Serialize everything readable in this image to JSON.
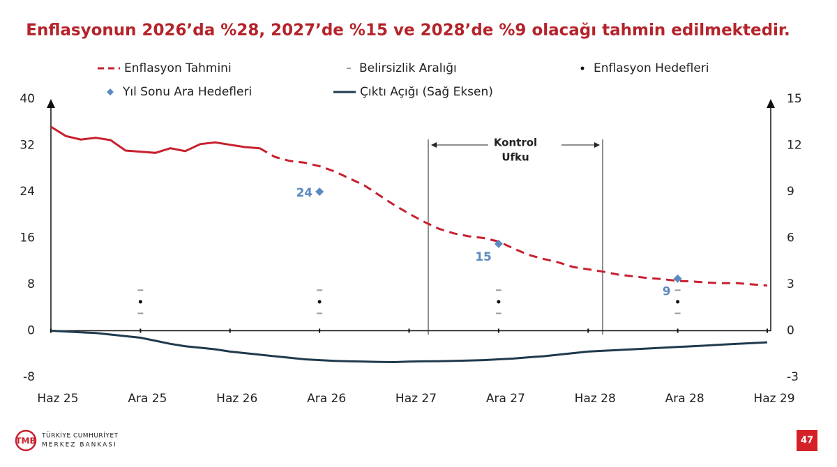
{
  "chart_data": {
    "type": "line",
    "title": "Enflasyonun 2026’da %28, 2027’de %15 ve 2028’de %9 olacağı tahmin edilmektedir.",
    "categories": [
      "Haz 25",
      null,
      null,
      null,
      null,
      null,
      "Ara 25",
      null,
      null,
      null,
      null,
      null,
      "Haz 26",
      null,
      null,
      null,
      null,
      null,
      "Ara 26",
      null,
      null,
      null,
      null,
      null,
      "Haz 27",
      null,
      null,
      null,
      null,
      null,
      "Ara 27",
      null,
      null,
      null,
      null,
      null,
      "Haz 28",
      null,
      null,
      null,
      null,
      null,
      "Ara 28",
      null,
      null,
      null,
      null,
      null,
      "Haz 29"
    ],
    "ylim": [
      -8,
      40
    ],
    "yticks": [
      -8,
      0,
      8,
      16,
      24,
      32,
      40
    ],
    "y2lim": [
      -3,
      15
    ],
    "y2ticks": [
      -3,
      0,
      3,
      6,
      9,
      12,
      15
    ],
    "annotation": [
      "Kontrol",
      "Ufku"
    ],
    "series": [
      {
        "color": "#c8202f",
        "style": "solid",
        "values": [
          35.2,
          33.6,
          33.0,
          33.3,
          32.9,
          31.1,
          30.9,
          30.7,
          31.5,
          31.0,
          32.2,
          32.5,
          32.1,
          31.7,
          31.5,
          null,
          null,
          null,
          null,
          null,
          null,
          null,
          null,
          null,
          null,
          null,
          null,
          null,
          null,
          null,
          null,
          null,
          null,
          null,
          null,
          null,
          null,
          null,
          null,
          null,
          null,
          null,
          null,
          null,
          null,
          null,
          null,
          null,
          null
        ]
      },
      {
        "name": "Enflasyon Tahmini",
        "color": "#c8202f",
        "style": "dashed",
        "values": [
          null,
          null,
          null,
          null,
          null,
          null,
          null,
          null,
          null,
          null,
          null,
          null,
          null,
          null,
          31.5,
          30.0,
          29.3,
          29.0,
          28.4,
          27.5,
          26.3,
          25.1,
          23.4,
          21.7,
          20.2,
          18.8,
          17.6,
          16.8,
          16.3,
          16.0,
          15.4,
          14.2,
          13.1,
          12.4,
          11.8,
          11.0,
          10.6,
          10.2,
          9.7,
          9.4,
          9.1,
          8.9,
          8.6,
          8.5,
          8.3,
          8.2,
          8.2,
          8.0,
          7.8
        ]
      },
      {
        "name": "Belirsizlik Aralığı",
        "color": "#999999",
        "kind": "range",
        "x": [
          "Ara 25",
          "Ara 26",
          "Ara 27",
          "Ara 28"
        ],
        "values": [
          7,
          7,
          7,
          7
        ],
        "low": [
          3,
          3,
          3,
          3
        ]
      },
      {
        "name": "Enflasyon Hedefleri",
        "color": "#111111",
        "kind": "dot",
        "x": [
          "Ara 25",
          "Ara 26",
          "Ara 27",
          "Ara 28"
        ],
        "values": [
          5,
          5,
          5,
          5
        ]
      },
      {
        "name": "Yıl Sonu Ara Hedefleri",
        "color": "#5b8ac0",
        "kind": "diamond",
        "x": [
          "Ara 26",
          "Ara 27",
          "Ara 28"
        ],
        "values": [
          24,
          15,
          9
        ]
      },
      {
        "name": "Çıktı Açığı (Sağ Eksen)",
        "color": "#1f3a4d",
        "style": "solid",
        "axis": "y2",
        "values": [
          0,
          -0.05,
          -0.1,
          -0.15,
          -0.25,
          -0.35,
          -0.45,
          -0.65,
          -0.85,
          -1.0,
          -1.1,
          -1.2,
          -1.35,
          -1.45,
          -1.55,
          -1.65,
          -1.75,
          -1.85,
          -1.9,
          -1.95,
          -1.98,
          -2.0,
          -2.02,
          -2.03,
          -2.0,
          -1.98,
          -1.97,
          -1.95,
          -1.93,
          -1.9,
          -1.85,
          -1.8,
          -1.72,
          -1.65,
          -1.55,
          -1.45,
          -1.35,
          -1.3,
          -1.25,
          -1.2,
          -1.15,
          -1.1,
          -1.05,
          -1.0,
          -0.95,
          -0.9,
          -0.85,
          -0.8,
          -0.75
        ]
      }
    ]
  },
  "footer": {
    "bank_line1": "TÜRKİYE CUMHURİYET",
    "bank_line2": "MERKEZ BANKASI",
    "page_number": "47"
  }
}
